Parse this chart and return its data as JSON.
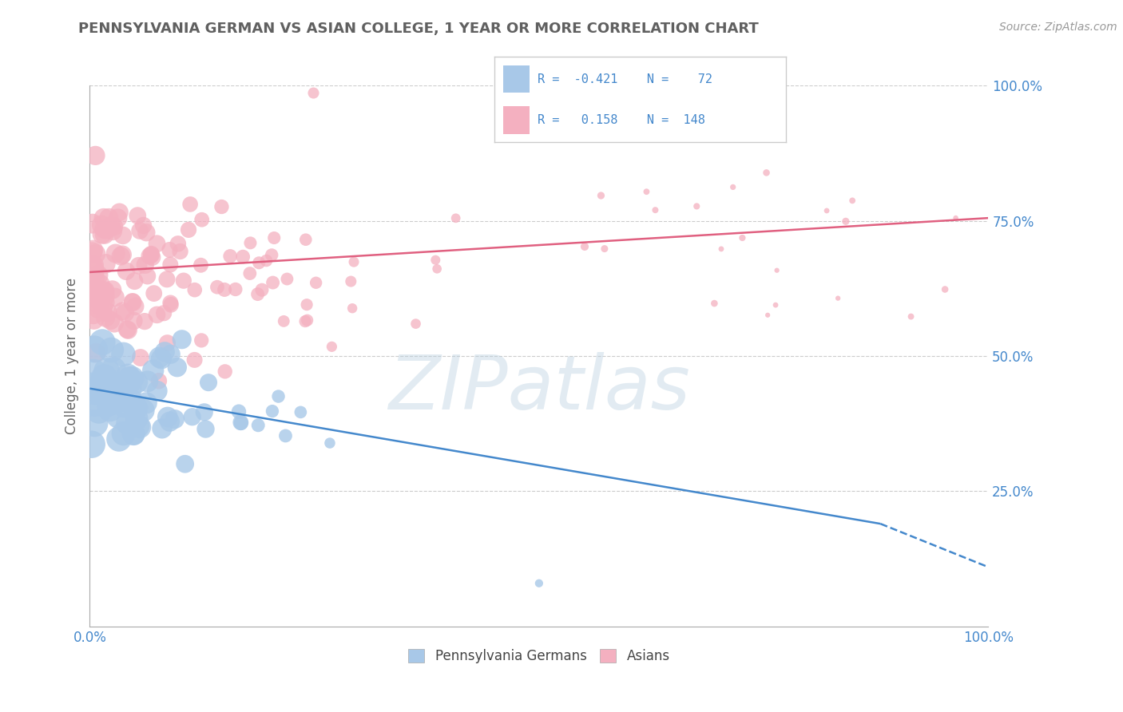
{
  "title": "PENNSYLVANIA GERMAN VS ASIAN COLLEGE, 1 YEAR OR MORE CORRELATION CHART",
  "source": "Source: ZipAtlas.com",
  "ylabel": "College, 1 year or more",
  "xlim": [
    0.0,
    1.0
  ],
  "ylim": [
    0.0,
    1.0
  ],
  "blue_color": "#a8c8e8",
  "pink_color": "#f4b0c0",
  "blue_line_color": "#4488cc",
  "pink_line_color": "#e06080",
  "watermark": "ZIPatlas",
  "background_color": "#ffffff",
  "grid_color": "#cccccc",
  "title_color": "#606060",
  "axis_label_color": "#4488cc",
  "blue_line_solid_end": 0.88,
  "blue_line_y_start": 0.44,
  "blue_line_y_solid_end": 0.19,
  "blue_line_y_dash_end": 0.11,
  "pink_line_y_start": 0.655,
  "pink_line_y_end": 0.755
}
